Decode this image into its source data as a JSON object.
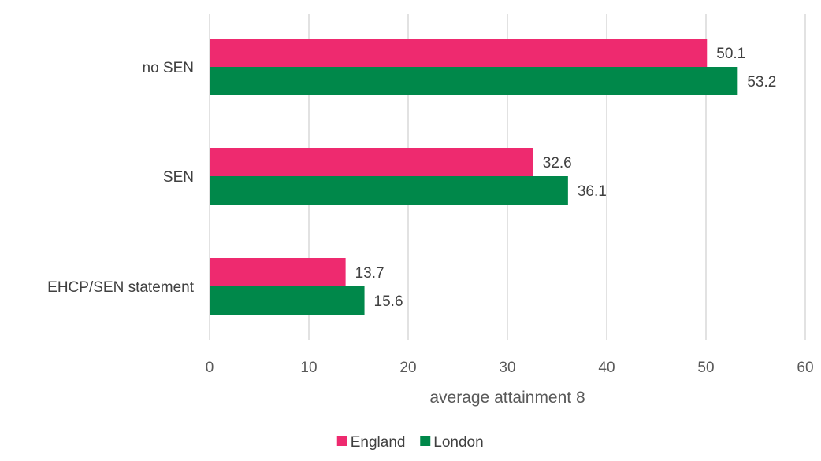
{
  "chart_data": {
    "type": "bar",
    "orientation": "horizontal",
    "categories": [
      "no SEN",
      "SEN",
      "EHCP/SEN statement"
    ],
    "series": [
      {
        "name": "England",
        "values": [
          50.1,
          32.6,
          13.7
        ],
        "color": "#EE2A6F"
      },
      {
        "name": "London",
        "values": [
          53.2,
          36.1,
          15.6
        ],
        "color": "#00884A"
      }
    ],
    "title": "",
    "xlabel": "average attainment 8",
    "ylabel": "",
    "xlim": [
      0,
      60
    ],
    "x_ticks": [
      "0",
      "10",
      "20",
      "30",
      "40",
      "50",
      "60"
    ],
    "data_labels": [
      [
        "50.1",
        "32.6",
        "13.7"
      ],
      [
        "53.2",
        "36.1",
        "15.6"
      ]
    ],
    "grid": "vertical",
    "gridline_color": "#D9D9D9",
    "legend_position": "bottom"
  }
}
